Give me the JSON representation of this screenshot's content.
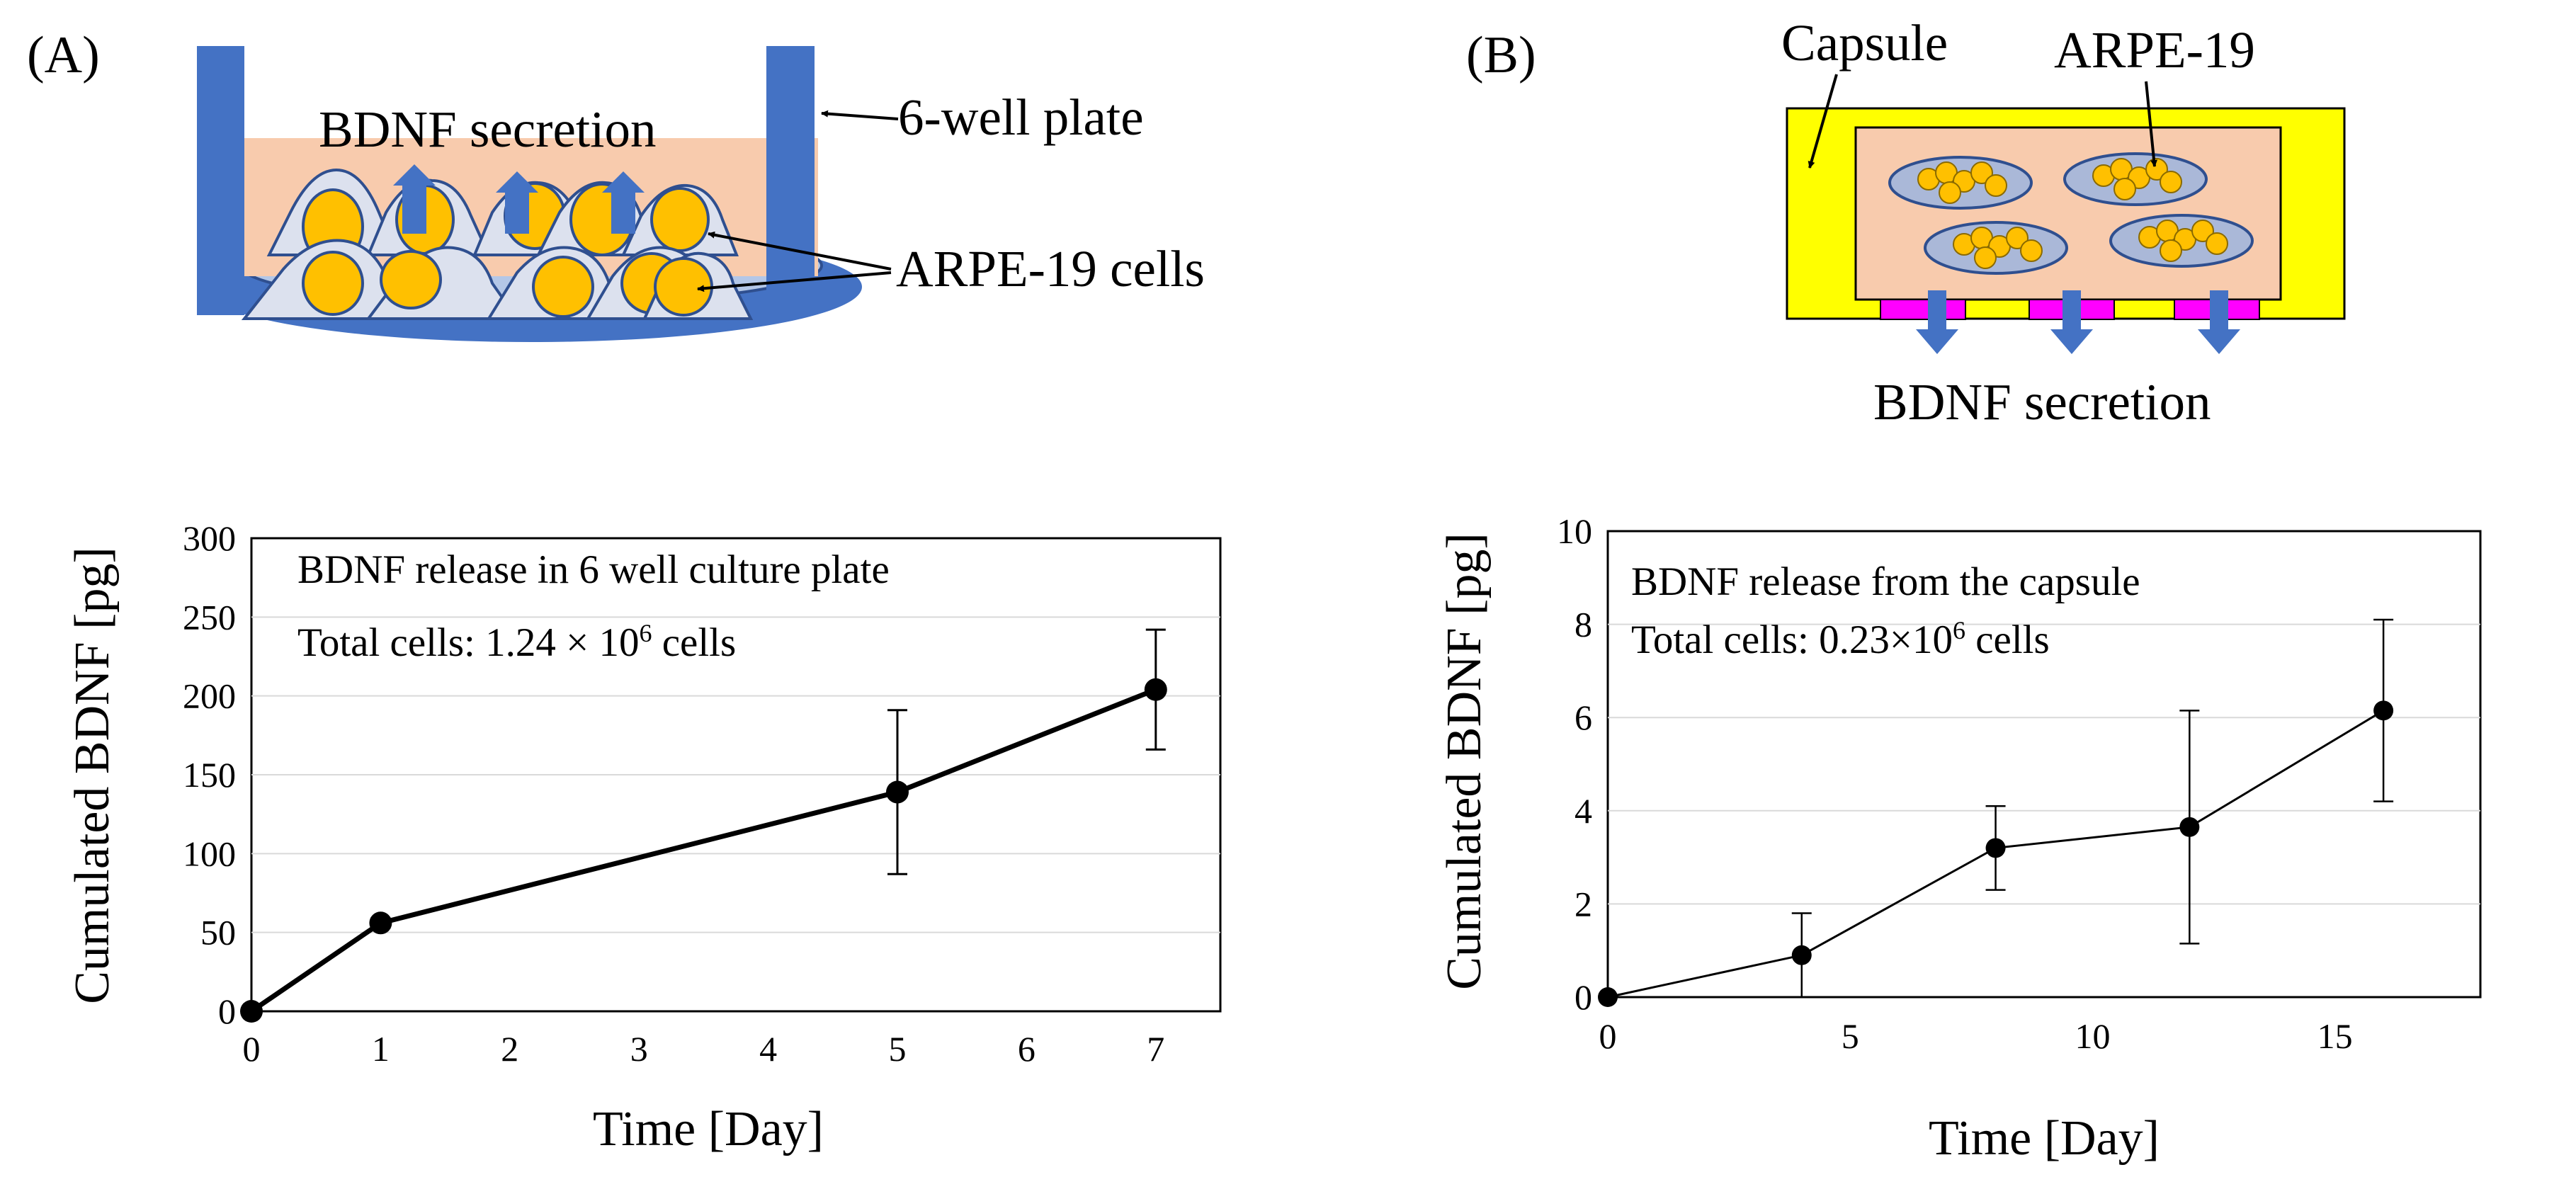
{
  "panels": {
    "a": {
      "label": "(A)",
      "diagram": {
        "secretion_label": "BDNF secretion",
        "plate_label": "6-well plate",
        "cells_label": "ARPE-19 cells"
      }
    },
    "b": {
      "label": "(B)",
      "diagram": {
        "capsule_label": "Capsule",
        "cells_label": "ARPE-19",
        "secretion_label": "BDNF secretion"
      }
    }
  },
  "colors": {
    "plate_blue": "#4472c4",
    "medium": "#f8cbad",
    "cell_fill": "#dce1ee",
    "nucleus": "#ffc000",
    "capsule": "#ffff00",
    "membrane": "#ff00ff"
  },
  "chart_data": [
    {
      "type": "line",
      "title": "BDNF release in 6 well culture plate",
      "subtitle": {
        "prefix": "Total cells: 1.24 × 10",
        "exponent": "6",
        "suffix": " cells"
      },
      "xlabel": "Time [Day]",
      "ylabel": "Cumulated BDNF [pg]",
      "xlim": [
        0,
        7.5
      ],
      "ylim": [
        0,
        300
      ],
      "xticks": [
        0,
        1,
        2,
        3,
        4,
        5,
        6,
        7
      ],
      "yticks": [
        0,
        50,
        100,
        150,
        200,
        250,
        300
      ],
      "grid": true,
      "series": [
        {
          "name": "BDNF",
          "x": [
            0,
            1,
            5,
            7
          ],
          "y": [
            0,
            56,
            139,
            204
          ],
          "err": [
            0,
            3,
            52,
            38
          ]
        }
      ]
    },
    {
      "type": "line",
      "title": "BDNF release from the capsule",
      "subtitle": {
        "prefix": "Total cells:  0.23×10",
        "exponent": "6",
        "suffix": " cells"
      },
      "xlabel": "Time [Day]",
      "ylabel": "Cumulated BDNF [pg]",
      "xlim": [
        0,
        18
      ],
      "ylim": [
        0,
        10
      ],
      "xticks": [
        0,
        5,
        10,
        15
      ],
      "yticks": [
        0,
        2,
        4,
        6,
        8,
        10
      ],
      "grid": true,
      "series": [
        {
          "name": "BDNF",
          "x": [
            0,
            4,
            8,
            12,
            16
          ],
          "y": [
            0,
            0.9,
            3.2,
            3.65,
            6.15
          ],
          "err": [
            0,
            0.9,
            0.9,
            2.5,
            1.95
          ]
        }
      ]
    }
  ]
}
